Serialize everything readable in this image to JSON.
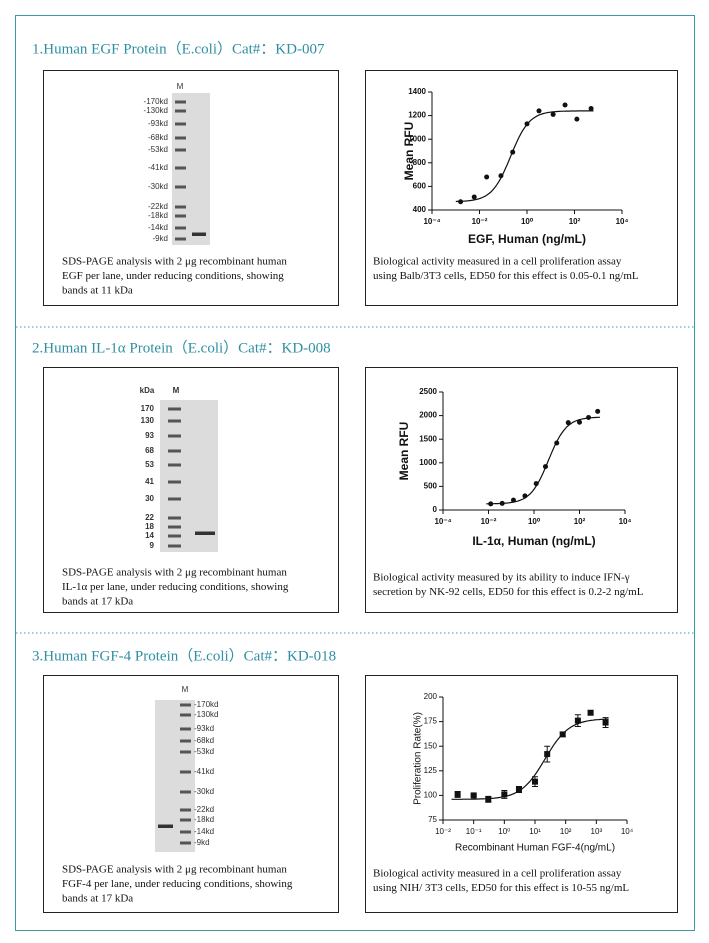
{
  "sections": [
    {
      "title": "1.Human EGF Protein（E.coli）Cat#：KD-007",
      "gel": {
        "headers": [
          "M"
        ],
        "markers": [
          "-170kd",
          "-130kd",
          "-93kd",
          "-68kd",
          "-53kd",
          "-41kd",
          "-30kd",
          "-22kd",
          "-18kd",
          "-14kd",
          "-9kd"
        ]
      },
      "gel_caption": [
        "SDS-PAGE analysis with 2 μg recombinant human",
        "EGF per lane, under reducing conditions, showing",
        "bands at 11 kDa"
      ],
      "chart": {
        "type": "scatter",
        "xlabel": "EGF, Human (ng/mL)",
        "ylabel": "Mean RFU",
        "xlog": true,
        "xlim": [
          0.0001,
          10000
        ],
        "ylim": [
          400,
          1400
        ],
        "xticks": [
          {
            "value": 0.0001,
            "label": "10⁻⁴"
          },
          {
            "value": 0.01,
            "label": "10⁻²"
          },
          {
            "value": 1,
            "label": "10⁰"
          },
          {
            "value": 100,
            "label": "10²"
          },
          {
            "value": 10000,
            "label": "10⁴"
          }
        ],
        "yticks": [
          400,
          600,
          800,
          1000,
          1200,
          1400
        ],
        "color": "#111111",
        "marker": "circle",
        "x": [
          0.0016,
          0.006,
          0.02,
          0.08,
          0.25,
          1,
          3.2,
          12.6,
          40,
          126,
          500
        ],
        "values": [
          470,
          510,
          680,
          690,
          890,
          1130,
          1240,
          1210,
          1290,
          1170,
          1260
        ]
      },
      "chart_caption": [
        "Biological activity measured in a cell proliferation assay",
        "using Balb/3T3 cells, ED50 for this effect is 0.05-0.1 ng/mL"
      ]
    },
    {
      "title": "2.Human IL-1α Protein（E.coli）Cat#：KD-008",
      "gel": {
        "headers": [
          "kDa",
          "M"
        ],
        "markers": [
          "170",
          "130",
          "93",
          "68",
          "53",
          "41",
          "30",
          "22",
          "18",
          "14",
          "9"
        ]
      },
      "gel_caption": [
        "SDS-PAGE analysis with 2 μg recombinant human",
        "IL-1α per lane, under reducing conditions, showing",
        "bands at 17 kDa"
      ],
      "chart": {
        "type": "scatter",
        "xlabel": "IL-1α, Human (ng/mL)",
        "ylabel": "Mean RFU",
        "xlog": true,
        "xlim": [
          0.0001,
          10000
        ],
        "ylim": [
          0,
          2500
        ],
        "xticks": [
          {
            "value": 0.0001,
            "label": "10⁻⁴"
          },
          {
            "value": 0.01,
            "label": "10⁻²"
          },
          {
            "value": 1,
            "label": "10⁰"
          },
          {
            "value": 100,
            "label": "10²"
          },
          {
            "value": 10000,
            "label": "10⁴"
          }
        ],
        "yticks": [
          0,
          500,
          1000,
          1500,
          2000,
          2500
        ],
        "color": "#111111",
        "marker": "circle",
        "x": [
          0.0125,
          0.04,
          0.125,
          0.4,
          1.25,
          3.2,
          10,
          32,
          100,
          250,
          630
        ],
        "values": [
          130,
          140,
          210,
          300,
          560,
          920,
          1420,
          1850,
          1860,
          1960,
          2090
        ]
      },
      "chart_caption": [
        "Biological activity measured by its ability to induce IFN-γ",
        "secretion by NK-92 cells, ED50 for this effect is 0.2-2 ng/mL"
      ]
    },
    {
      "title": "3.Human FGF-4 Protein（E.coli）Cat#：KD-018",
      "gel": {
        "headers": [
          "M"
        ],
        "markers": [
          "-170kd",
          "-130kd",
          "-93kd",
          "-68kd",
          "-53kd",
          "-41kd",
          "-30kd",
          "-22kd",
          "-18kd",
          "-14kd",
          "-9kd"
        ]
      },
      "gel_caption": [
        "SDS-PAGE analysis with 2 μg recombinant human",
        "FGF-4 per lane, under reducing conditions, showing",
        "bands at 17 kDa"
      ],
      "chart": {
        "type": "scatter",
        "xlabel": "Recombinant Human FGF-4(ng/mL)",
        "ylabel": "Proliferation Rate(%)",
        "xlog": true,
        "xlim": [
          0.01,
          10000
        ],
        "ylim": [
          75,
          200
        ],
        "xticks": [
          {
            "value": 0.01,
            "label": "10⁻²"
          },
          {
            "value": 0.1,
            "label": "10⁻¹"
          },
          {
            "value": 1,
            "label": "10⁰"
          },
          {
            "value": 10,
            "label": "10¹"
          },
          {
            "value": 100,
            "label": "10²"
          },
          {
            "value": 1000,
            "label": "10³"
          },
          {
            "value": 10000,
            "label": "10⁴"
          }
        ],
        "yticks": [
          75,
          100,
          125,
          150,
          175,
          200
        ],
        "color": "#111111",
        "marker": "square",
        "x": [
          0.03,
          0.1,
          0.3,
          1,
          3,
          10,
          25,
          80,
          250,
          650,
          2000
        ],
        "values": [
          101,
          100,
          96,
          101,
          106,
          114,
          142,
          162,
          176,
          184,
          174
        ],
        "errors": [
          3,
          1,
          3,
          4,
          3,
          5,
          8,
          2,
          6,
          2,
          5
        ]
      },
      "chart_caption": [
        "Biological activity measured in a cell proliferation assay",
        "using NIH/ 3T3 cells, ED50 for this effect is 10-55 ng/mL"
      ]
    }
  ]
}
